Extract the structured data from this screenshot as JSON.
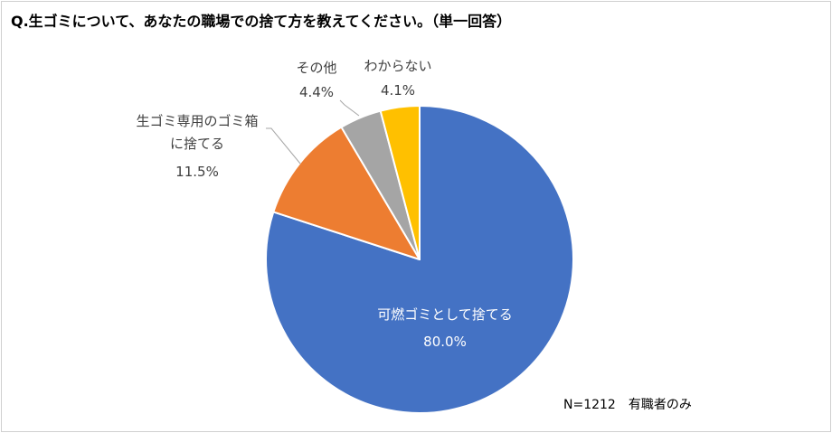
{
  "title": "Q.生ゴミについて、あなたの職場での捨て方を教えてください。（単一回答）",
  "note": "N=1212　有職者のみ",
  "chart_data": {
    "type": "pie",
    "title": "Q.生ゴミについて、あなたの職場での捨て方を教えてください。（単一回答）",
    "start_angle": "12 o'clock, clockwise",
    "slices": [
      {
        "label": "可燃ゴミとして捨てる",
        "label_lines": [
          "可燃ゴミとして捨てる"
        ],
        "value": 80.0,
        "value_label": "80.0%",
        "color": "#4472C4"
      },
      {
        "label": "生ゴミ専用のゴミ箱に捨てる",
        "label_lines": [
          "生ゴミ専用のゴミ箱",
          "に捨てる"
        ],
        "value": 11.5,
        "value_label": "11.5%",
        "color": "#ED7D31"
      },
      {
        "label": "その他",
        "label_lines": [
          "その他"
        ],
        "value": 4.4,
        "value_label": "4.4%",
        "color": "#A5A5A5"
      },
      {
        "label": "わからない",
        "label_lines": [
          "わからない"
        ],
        "value": 4.1,
        "value_label": "4.1%",
        "color": "#FFC000"
      }
    ]
  }
}
